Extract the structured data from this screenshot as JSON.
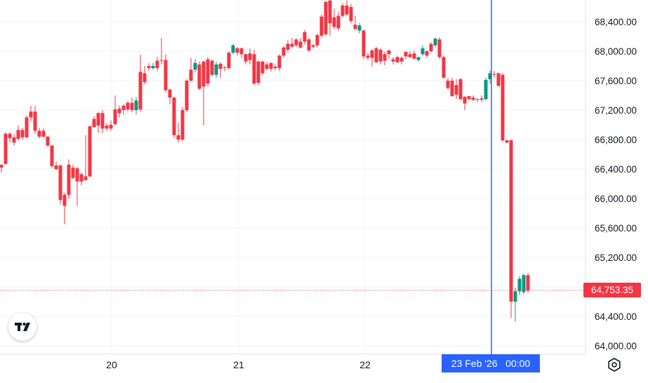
{
  "chart_data": {
    "type": "candlestick",
    "x_tick_labels": [
      "20",
      "21",
      "22"
    ],
    "y_tick_labels": [
      "68,400.00",
      "68,000.00",
      "67,600.00",
      "67,200.00",
      "66,800.00",
      "66,400.00",
      "66,000.00",
      "65,600.00",
      "65,200.00",
      "64,800.00",
      "64,400.00",
      "64,000.00"
    ],
    "y_ticks": [
      68400,
      68000,
      67600,
      67200,
      66800,
      66400,
      66000,
      65600,
      65200,
      64800,
      64400,
      64000
    ],
    "ylim": [
      63900,
      68680
    ],
    "last_price": 64753.35,
    "last_price_label": "64,753.35",
    "cursor_label": "23 Feb '26   00:00",
    "up_color": "#089981",
    "down_color": "#f23645",
    "cursor_color": "#2962ff",
    "candles": [
      [
        66460,
        66420,
        66350,
        66460
      ],
      [
        66880,
        66470,
        66460,
        66900
      ],
      [
        66880,
        66820,
        66760,
        66900
      ],
      [
        66830,
        66760,
        66720,
        66870
      ],
      [
        66930,
        66810,
        66790,
        66990
      ],
      [
        66930,
        66830,
        66800,
        66960
      ],
      [
        67100,
        66830,
        66820,
        67130
      ],
      [
        67180,
        67100,
        67050,
        67260
      ],
      [
        67180,
        66920,
        66880,
        67260
      ],
      [
        66920,
        66840,
        66820,
        66960
      ],
      [
        66920,
        66840,
        66830,
        66950
      ],
      [
        66840,
        66720,
        66700,
        66850
      ],
      [
        66720,
        66440,
        66420,
        66720
      ],
      [
        66450,
        66400,
        66390,
        66500
      ],
      [
        66450,
        65980,
        65920,
        66460
      ],
      [
        66050,
        65900,
        65650,
        66080
      ],
      [
        66460,
        66050,
        66000,
        66530
      ],
      [
        66420,
        66280,
        66260,
        66460
      ],
      [
        66410,
        66230,
        65900,
        66430
      ],
      [
        66330,
        66230,
        66180,
        66350
      ],
      [
        66300,
        66250,
        66240,
        66860
      ],
      [
        66980,
        66300,
        66290,
        66990
      ],
      [
        67080,
        66970,
        66960,
        67120
      ],
      [
        67160,
        66990,
        66890,
        67170
      ],
      [
        67160,
        66950,
        66890,
        67200
      ],
      [
        66990,
        66950,
        66920,
        67020
      ],
      [
        67000,
        66950,
        66920,
        67060
      ],
      [
        67210,
        67010,
        66990,
        67400
      ],
      [
        67220,
        67160,
        67100,
        67260
      ],
      [
        67260,
        67200,
        67140,
        67280
      ],
      [
        67300,
        67210,
        67180,
        67320
      ],
      [
        67300,
        67200,
        67170,
        67370
      ],
      [
        67200,
        67330,
        67140,
        67380
      ],
      [
        67720,
        67210,
        67180,
        67950
      ],
      [
        67700,
        67580,
        67550,
        67800
      ],
      [
        67800,
        67770,
        67730,
        67840
      ],
      [
        67770,
        67800,
        67750,
        67840
      ],
      [
        67870,
        67770,
        67730,
        67920
      ],
      [
        67880,
        67870,
        67820,
        68180
      ],
      [
        67880,
        67470,
        67440,
        67960
      ],
      [
        67480,
        67370,
        67280,
        67490
      ],
      [
        67370,
        66860,
        66820,
        67380
      ],
      [
        66860,
        66800,
        66760,
        67030
      ],
      [
        67200,
        66800,
        66780,
        67240
      ],
      [
        67600,
        67200,
        67170,
        67620
      ],
      [
        67750,
        67600,
        67580,
        67910
      ],
      [
        67750,
        67840,
        67710,
        67890
      ],
      [
        67820,
        67490,
        67470,
        67860
      ],
      [
        67860,
        67520,
        66990,
        67870
      ],
      [
        67890,
        67560,
        67520,
        67920
      ],
      [
        67870,
        67680,
        67660,
        67890
      ],
      [
        67680,
        67820,
        67640,
        67860
      ],
      [
        67830,
        67760,
        67640,
        67850
      ],
      [
        67780,
        67770,
        67730,
        67800
      ],
      [
        67980,
        67770,
        67750,
        68000
      ],
      [
        67980,
        68080,
        67960,
        68100
      ],
      [
        68040,
        67980,
        67940,
        68060
      ],
      [
        68040,
        67960,
        67910,
        68050
      ],
      [
        67960,
        67860,
        67820,
        67970
      ],
      [
        67970,
        67880,
        67820,
        68040
      ],
      [
        67960,
        67560,
        67540,
        68020
      ],
      [
        67860,
        67570,
        67540,
        67870
      ],
      [
        67860,
        67700,
        67680,
        67870
      ],
      [
        67820,
        67760,
        67740,
        67850
      ],
      [
        67840,
        67760,
        67720,
        67850
      ],
      [
        67790,
        67770,
        67740,
        67820
      ],
      [
        67940,
        67770,
        67730,
        67960
      ],
      [
        68050,
        67940,
        67910,
        68070
      ],
      [
        68100,
        68020,
        67980,
        68150
      ],
      [
        68100,
        68060,
        68050,
        68180
      ],
      [
        68160,
        68080,
        68060,
        68170
      ],
      [
        68130,
        68050,
        68040,
        68180
      ],
      [
        68260,
        68130,
        68090,
        68290
      ],
      [
        68160,
        68010,
        67990,
        68180
      ],
      [
        68080,
        68060,
        68040,
        68100
      ],
      [
        68220,
        68080,
        68050,
        68240
      ],
      [
        68470,
        68210,
        68180,
        68500
      ],
      [
        68670,
        68230,
        68210,
        68680
      ],
      [
        68690,
        68380,
        68210,
        68690
      ],
      [
        68460,
        68330,
        68300,
        68580
      ],
      [
        68480,
        68310,
        68280,
        68530
      ],
      [
        68620,
        68480,
        68460,
        68650
      ],
      [
        68620,
        68500,
        68480,
        68690
      ],
      [
        68600,
        68410,
        68380,
        68640
      ],
      [
        68360,
        68300,
        68290,
        68480
      ],
      [
        68280,
        68350,
        68240,
        68380
      ],
      [
        68280,
        67930,
        67890,
        68300
      ],
      [
        67940,
        67910,
        67880,
        67980
      ],
      [
        68010,
        67910,
        67790,
        68030
      ],
      [
        68040,
        67850,
        67840,
        68060
      ],
      [
        68020,
        67860,
        67820,
        68040
      ],
      [
        67960,
        67870,
        67810,
        67990
      ],
      [
        68010,
        67960,
        67900,
        68020
      ],
      [
        67890,
        67860,
        67820,
        67920
      ],
      [
        67920,
        67850,
        67840,
        67940
      ],
      [
        67910,
        67860,
        67820,
        67930
      ],
      [
        67990,
        67930,
        67890,
        68000
      ],
      [
        67960,
        67920,
        67910,
        68000
      ],
      [
        67970,
        67900,
        67880,
        68010
      ],
      [
        67880,
        67920,
        67860,
        67920
      ],
      [
        67960,
        68040,
        67930,
        68080
      ],
      [
        68000,
        67940,
        67910,
        68020
      ],
      [
        68100,
        68000,
        67980,
        68120
      ],
      [
        68080,
        68170,
        68050,
        68190
      ],
      [
        68160,
        67920,
        67890,
        68190
      ],
      [
        67920,
        67640,
        67630,
        67940
      ],
      [
        67600,
        67500,
        67480,
        67640
      ],
      [
        67600,
        67390,
        67380,
        67640
      ],
      [
        67540,
        67410,
        67350,
        67620
      ],
      [
        67620,
        67350,
        67330,
        67640
      ],
      [
        67380,
        67290,
        67200,
        67390
      ],
      [
        67390,
        67350,
        67340,
        67390
      ],
      [
        67370,
        67340,
        67320,
        67400
      ],
      [
        67340,
        67350,
        67310,
        67360
      ],
      [
        67360,
        67340,
        67310,
        67400
      ],
      [
        67350,
        67610,
        67330,
        67640
      ],
      [
        67620,
        67700,
        67560,
        67740
      ],
      [
        67690,
        67680,
        67640,
        67730
      ],
      [
        67700,
        67530,
        67520,
        67710
      ],
      [
        67680,
        66790,
        66770,
        67700
      ],
      [
        66790,
        66760,
        66750,
        66800
      ],
      [
        66790,
        64600,
        64380,
        66800
      ],
      [
        64600,
        64740,
        64330,
        64790
      ],
      [
        64740,
        64910,
        64690,
        64950
      ],
      [
        64730,
        64960,
        64700,
        64980
      ],
      [
        64960,
        64750,
        64720,
        64990
      ]
    ]
  }
}
